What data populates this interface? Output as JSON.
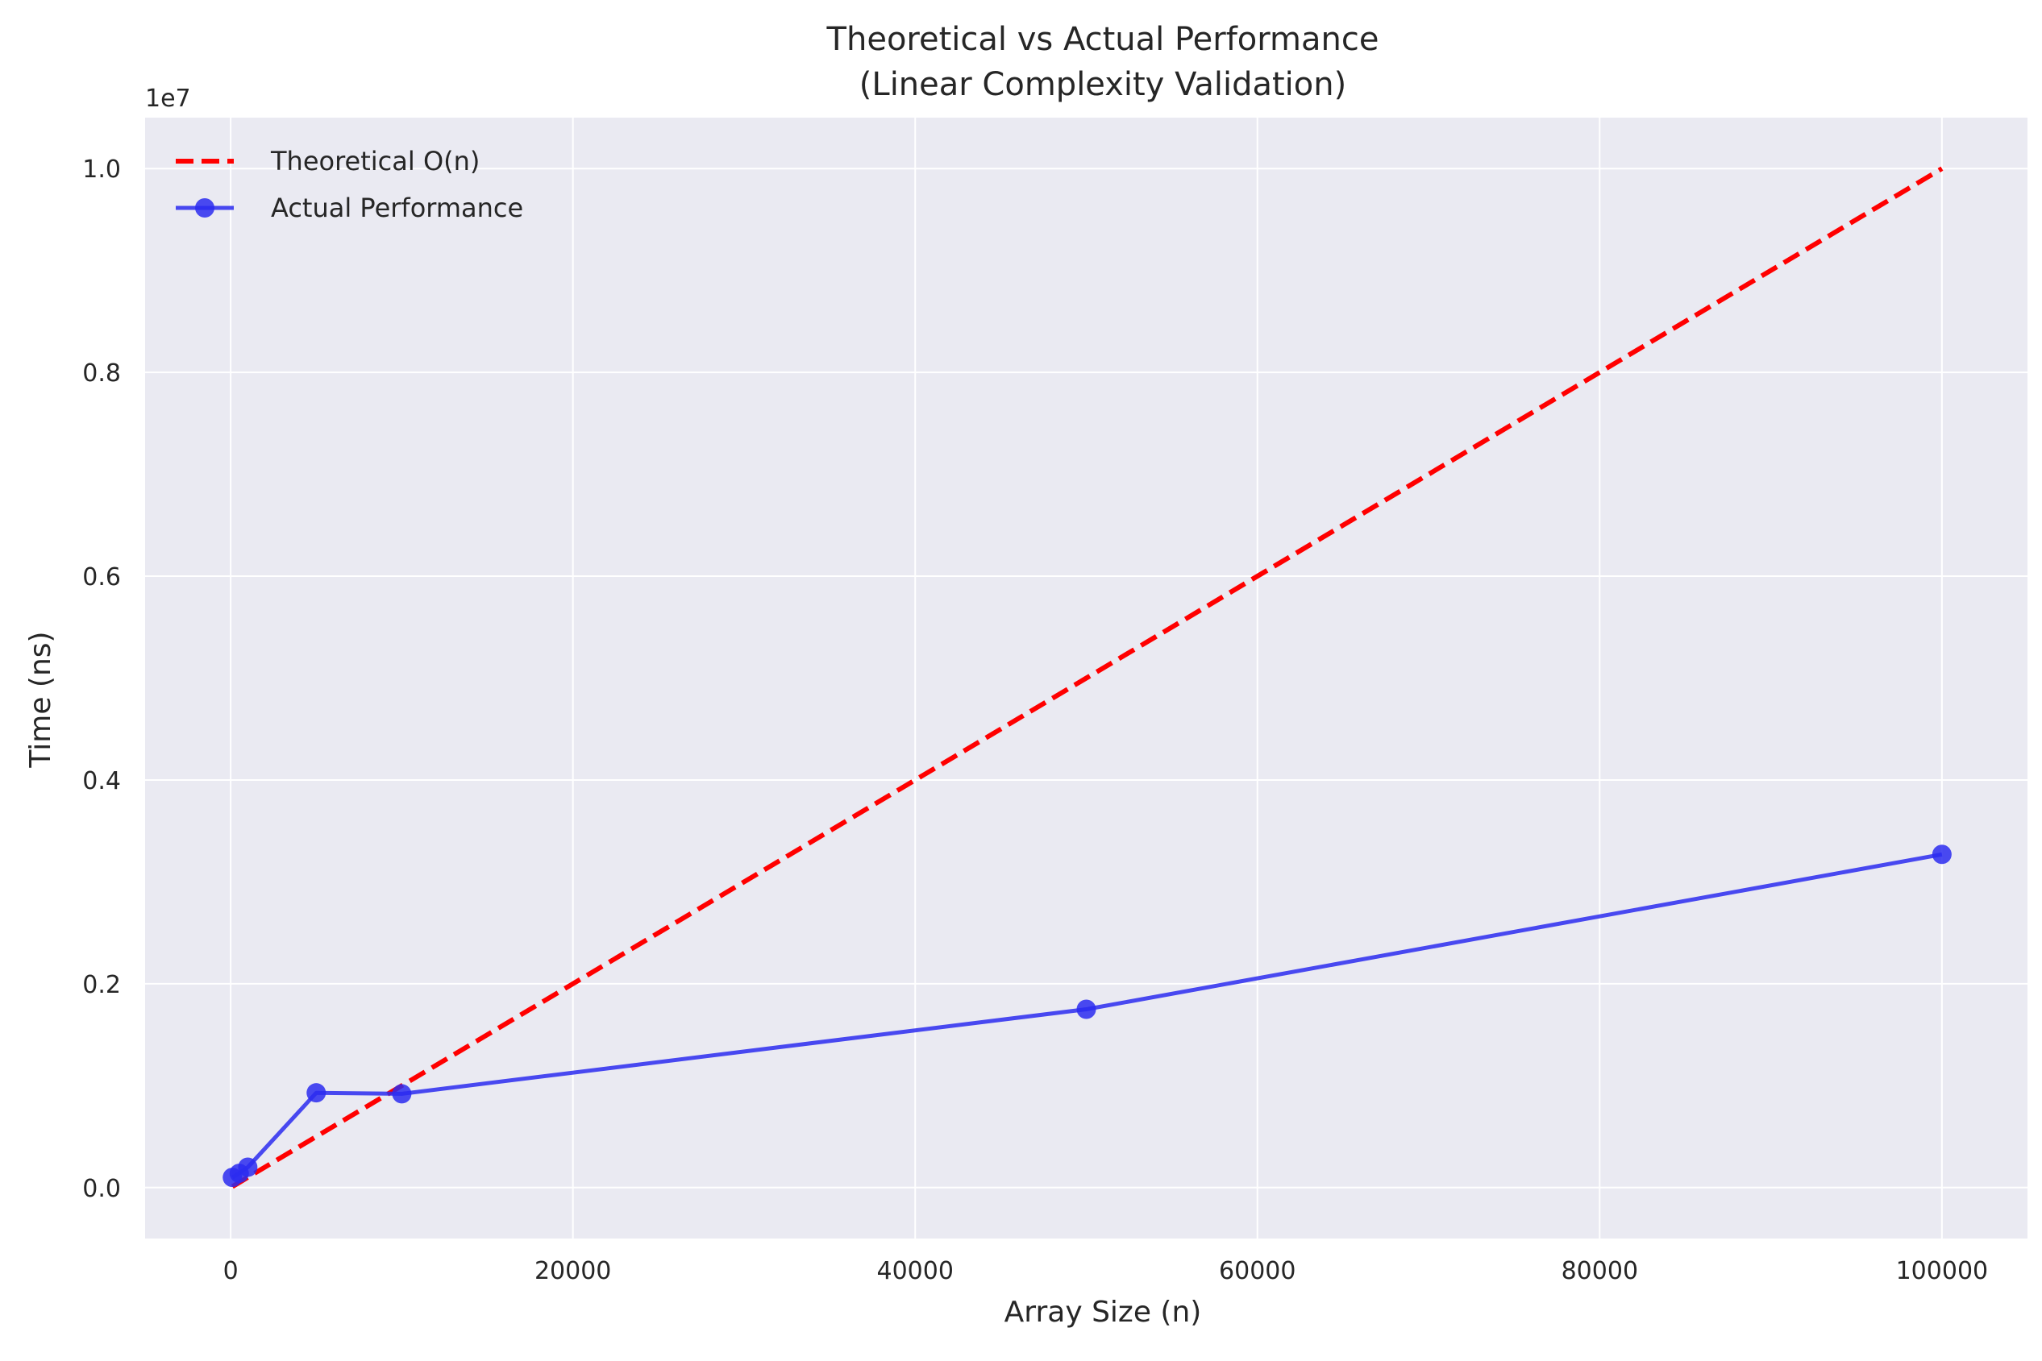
{
  "chart_data": {
    "type": "line",
    "title": [
      "Theoretical vs Actual Performance",
      "(Linear Complexity Validation)"
    ],
    "xlabel": "Array Size (n)",
    "ylabel": "Time (ns)",
    "y_offset_label": "1e7",
    "xlim": [
      -5000,
      105000
    ],
    "ylim": [
      -0.05,
      1.05
    ],
    "x_ticks": [
      0,
      20000,
      40000,
      60000,
      80000,
      100000
    ],
    "x_tick_labels": [
      "0",
      "20000",
      "40000",
      "60000",
      "80000",
      "100000"
    ],
    "y_ticks": [
      0.0,
      0.2,
      0.4,
      0.6,
      0.8,
      1.0
    ],
    "y_tick_labels": [
      "0.0",
      "0.2",
      "0.4",
      "0.6",
      "0.8",
      "1.0"
    ],
    "grid": true,
    "legend_position": "top-left",
    "series": [
      {
        "name": "Theoretical O(n)",
        "style": "dashed",
        "color": "#ff0000",
        "marker": false,
        "x": [
          100,
          500,
          1000,
          5000,
          10000,
          50000,
          100000
        ],
        "y": [
          0.001,
          0.005,
          0.01,
          0.05,
          0.1,
          0.5,
          1.0
        ]
      },
      {
        "name": "Actual Performance",
        "style": "solid",
        "color": "#2b2bf0",
        "marker": true,
        "x": [
          100,
          500,
          1000,
          5000,
          10000,
          50000,
          100000
        ],
        "y": [
          0.01,
          0.014,
          0.02,
          0.093,
          0.092,
          0.175,
          0.327
        ]
      }
    ]
  }
}
